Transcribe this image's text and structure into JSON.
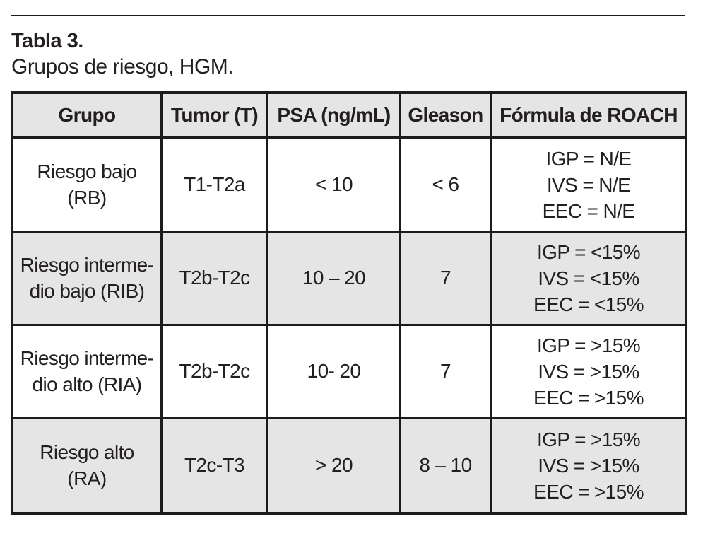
{
  "document": {
    "title": "Tabla 3.",
    "subtitle": "Grupos de riesgo, HGM."
  },
  "table": {
    "headers": [
      "Grupo",
      "Tumor (T)",
      "PSA (ng/mL)",
      "Gleason",
      "Fórmula de ROACH"
    ],
    "rows": [
      {
        "grupo_lines": [
          "Riesgo bajo",
          "(RB)"
        ],
        "tumor": "T1-T2a",
        "psa": "< 10",
        "gleason": "< 6",
        "formula": [
          "IGP = N/E",
          "IVS = N/E",
          "EEC = N/E"
        ]
      },
      {
        "grupo_lines": [
          "Riesgo interme-",
          "dio bajo (RIB)"
        ],
        "tumor": "T2b-T2c",
        "psa": "10 – 20",
        "gleason": "7",
        "formula": [
          "IGP = <15%",
          "IVS = <15%",
          "EEC = <15%"
        ]
      },
      {
        "grupo_lines": [
          "Riesgo interme-",
          "dio alto (RIA)"
        ],
        "tumor": "T2b-T2c",
        "psa": "10- 20",
        "gleason": "7",
        "formula": [
          "IGP = >15%",
          "IVS = >15%",
          "EEC = >15%"
        ]
      },
      {
        "grupo_lines": [
          "Riesgo alto",
          "(RA)"
        ],
        "tumor": "T2c-T3",
        "psa": "> 20",
        "gleason": "8 – 10",
        "formula": [
          "IGP = >15%",
          "IVS = >15%",
          "EEC = >15%"
        ]
      }
    ]
  },
  "colors": {
    "header_bg": "#e6e5e6",
    "stripe_bg": "#e6e5e6",
    "border": "#1c1c1c",
    "text": "#231f20",
    "page_bg": "#ffffff"
  }
}
